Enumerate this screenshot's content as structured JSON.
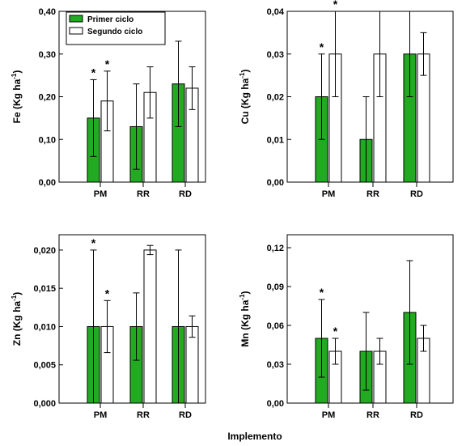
{
  "colors": {
    "primer": "#22aa22",
    "segundo": "#ffffff",
    "stroke": "#000000"
  },
  "xlabel": "Implemento",
  "legend": {
    "items": [
      "Primer ciclo",
      "Segundo ciclo"
    ]
  },
  "chart_data": [
    {
      "type": "bar",
      "element": "Fe",
      "ylabel": "Fe (Kg ha-1)",
      "ylim": [
        0,
        0.4
      ],
      "yticks": [
        "0,00",
        "0,10",
        "0,20",
        "0,30",
        "0,40"
      ],
      "categories": [
        "PM",
        "RR",
        "RD"
      ],
      "legend": true,
      "series": [
        {
          "name": "Primer ciclo",
          "values": [
            0.15,
            0.13,
            0.23
          ],
          "err_low": [
            0.06,
            0.03,
            0.13
          ],
          "err_high": [
            0.24,
            0.23,
            0.33
          ],
          "stars": [
            true,
            false,
            false
          ]
        },
        {
          "name": "Segundo ciclo",
          "values": [
            0.19,
            0.21,
            0.22
          ],
          "err_low": [
            0.12,
            0.15,
            0.17
          ],
          "err_high": [
            0.26,
            0.27,
            0.27
          ],
          "stars": [
            true,
            false,
            false
          ]
        }
      ]
    },
    {
      "type": "bar",
      "element": "Cu",
      "ylabel": "Cu (Kg ha-1)",
      "ylim": [
        0,
        0.04
      ],
      "yticks": [
        "0,00",
        "0,01",
        "0,02",
        "0,03",
        "0,04"
      ],
      "categories": [
        "PM",
        "RR",
        "RD"
      ],
      "legend": false,
      "series": [
        {
          "name": "Primer ciclo",
          "values": [
            0.02,
            0.01,
            0.03
          ],
          "err_low": [
            0.01,
            0.0,
            0.02
          ],
          "err_high": [
            0.03,
            0.02,
            0.04
          ],
          "stars": [
            true,
            false,
            false
          ]
        },
        {
          "name": "Segundo ciclo",
          "values": [
            0.03,
            0.03,
            0.03
          ],
          "err_low": [
            0.02,
            0.02,
            0.025
          ],
          "err_high": [
            0.04,
            0.04,
            0.035
          ],
          "stars": [
            true,
            false,
            false
          ]
        }
      ]
    },
    {
      "type": "bar",
      "element": "Zn",
      "ylabel": "Zn (Kg ha-1)",
      "ylim": [
        0,
        0.022
      ],
      "yticks": [
        "0,000",
        "0,005",
        "0,010",
        "0,015",
        "0,020"
      ],
      "categories": [
        "PM",
        "RR",
        "RD"
      ],
      "legend": false,
      "series": [
        {
          "name": "Primer ciclo",
          "values": [
            0.01,
            0.01,
            0.01
          ],
          "err_low": [
            0.0,
            0.0056,
            0.0
          ],
          "err_high": [
            0.02,
            0.0144,
            0.02
          ],
          "stars": [
            true,
            false,
            false
          ]
        },
        {
          "name": "Segundo ciclo",
          "values": [
            0.01,
            0.02,
            0.01
          ],
          "err_low": [
            0.0066,
            0.0194,
            0.0086
          ],
          "err_high": [
            0.0134,
            0.0206,
            0.0114
          ],
          "stars": [
            true,
            false,
            false
          ]
        }
      ]
    },
    {
      "type": "bar",
      "element": "Mn",
      "ylabel": "Mn (Kg ha-1)",
      "ylim": [
        0,
        0.13
      ],
      "yticks": [
        "0,00",
        "0,03",
        "0,06",
        "0,09",
        "0,12"
      ],
      "categories": [
        "PM",
        "RR",
        "RD"
      ],
      "legend": false,
      "series": [
        {
          "name": "Primer ciclo",
          "values": [
            0.05,
            0.04,
            0.07
          ],
          "err_low": [
            0.02,
            0.01,
            0.03
          ],
          "err_high": [
            0.08,
            0.07,
            0.11
          ],
          "stars": [
            true,
            false,
            false
          ]
        },
        {
          "name": "Segundo ciclo",
          "values": [
            0.04,
            0.04,
            0.05
          ],
          "err_low": [
            0.03,
            0.03,
            0.04
          ],
          "err_high": [
            0.05,
            0.05,
            0.06
          ],
          "stars": [
            true,
            false,
            false
          ]
        }
      ]
    }
  ]
}
